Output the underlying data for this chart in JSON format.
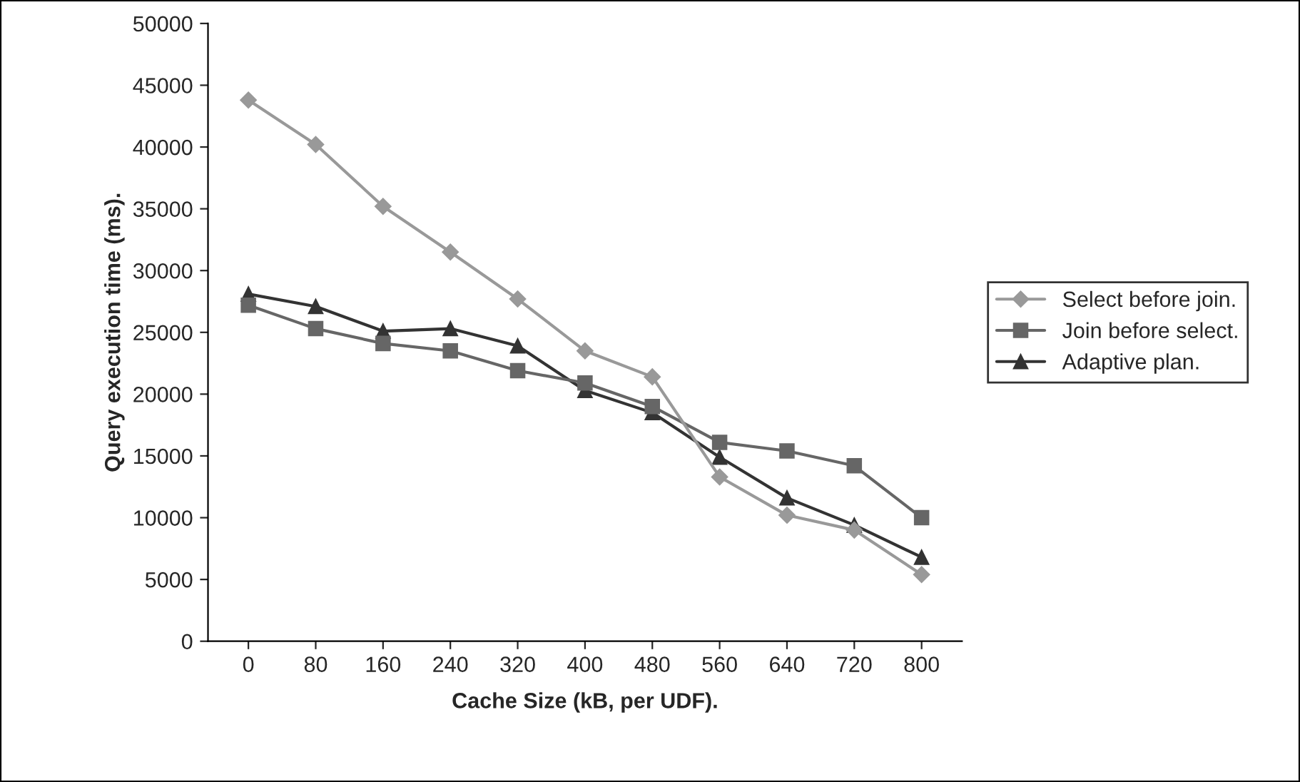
{
  "chart_data": {
    "type": "line",
    "xlabel": "Cache Size (kB, per UDF).",
    "ylabel": "Query execution time (ms).",
    "categories": [
      "0",
      "80",
      "160",
      "240",
      "320",
      "400",
      "480",
      "560",
      "640",
      "720",
      "800"
    ],
    "ylim": [
      0,
      50000
    ],
    "yticks": [
      0,
      5000,
      10000,
      15000,
      20000,
      25000,
      30000,
      35000,
      40000,
      45000,
      50000
    ],
    "grid": false,
    "legend": "right",
    "line_style": "solid",
    "series": [
      {
        "name": "Select before join.",
        "color": "#999999",
        "marker": "diamond",
        "values": [
          43800,
          40200,
          35200,
          31500,
          27700,
          23500,
          21400,
          13300,
          10200,
          9000,
          5400
        ]
      },
      {
        "name": "Join before select.",
        "color": "#666666",
        "marker": "square",
        "values": [
          27200,
          25300,
          24100,
          23500,
          21900,
          20900,
          19000,
          16100,
          15400,
          14200,
          10000
        ]
      },
      {
        "name": "Adaptive plan.",
        "color": "#333333",
        "marker": "triangle",
        "values": [
          28100,
          27100,
          25100,
          25300,
          23900,
          20300,
          18500,
          14900,
          11600,
          9400,
          6800
        ]
      }
    ]
  }
}
